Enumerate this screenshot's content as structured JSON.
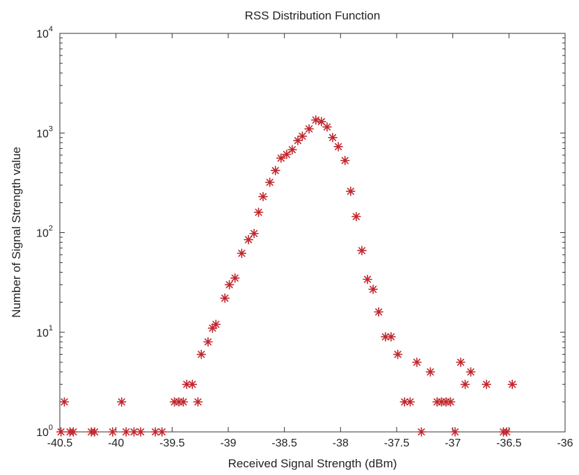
{
  "chart_data": {
    "type": "scatter",
    "title": "RSS Distribution Function",
    "xlabel": "Received Signal Strength (dBm)",
    "ylabel": "Number of Signal Strength value",
    "xlim": [
      -40.5,
      -36
    ],
    "ylim": [
      1,
      10000
    ],
    "yscale": "log",
    "grid": false,
    "marker": "asterisk",
    "marker_color": "#c0262c",
    "x_ticks": [
      {
        "value": -40.5,
        "label": "-40.5"
      },
      {
        "value": -40,
        "label": "-40"
      },
      {
        "value": -39.5,
        "label": "-39.5"
      },
      {
        "value": -39,
        "label": "-39"
      },
      {
        "value": -38.5,
        "label": "-38.5"
      },
      {
        "value": -38,
        "label": "-38"
      },
      {
        "value": -37.5,
        "label": "-37.5"
      },
      {
        "value": -37,
        "label": "-37"
      },
      {
        "value": -36.5,
        "label": "-36.5"
      },
      {
        "value": -36,
        "label": "-36"
      }
    ],
    "y_ticks": [
      {
        "value": 1,
        "base": "10",
        "exp": "0"
      },
      {
        "value": 10,
        "base": "10",
        "exp": "1"
      },
      {
        "value": 100,
        "base": "10",
        "exp": "2"
      },
      {
        "value": 1000,
        "base": "10",
        "exp": "3"
      },
      {
        "value": 10000,
        "base": "10",
        "exp": "4"
      }
    ],
    "points": [
      [
        -40.49,
        1
      ],
      [
        -40.46,
        2
      ],
      [
        -40.41,
        1
      ],
      [
        -40.38,
        1
      ],
      [
        -40.22,
        1
      ],
      [
        -40.19,
        1
      ],
      [
        -40.03,
        1
      ],
      [
        -39.95,
        2
      ],
      [
        -39.91,
        1
      ],
      [
        -39.84,
        1
      ],
      [
        -39.78,
        1
      ],
      [
        -39.65,
        1
      ],
      [
        -39.59,
        1
      ],
      [
        -39.48,
        2
      ],
      [
        -39.44,
        2
      ],
      [
        -39.4,
        2
      ],
      [
        -39.37,
        3
      ],
      [
        -39.32,
        3
      ],
      [
        -39.27,
        2
      ],
      [
        -39.24,
        6
      ],
      [
        -39.18,
        8
      ],
      [
        -39.14,
        11
      ],
      [
        -39.11,
        12
      ],
      [
        -39.03,
        22
      ],
      [
        -38.99,
        30
      ],
      [
        -38.94,
        35
      ],
      [
        -38.88,
        62
      ],
      [
        -38.82,
        85
      ],
      [
        -38.77,
        98
      ],
      [
        -38.73,
        160
      ],
      [
        -38.69,
        230
      ],
      [
        -38.63,
        320
      ],
      [
        -38.58,
        420
      ],
      [
        -38.53,
        560
      ],
      [
        -38.48,
        610
      ],
      [
        -38.43,
        680
      ],
      [
        -38.38,
        840
      ],
      [
        -38.34,
        930
      ],
      [
        -38.28,
        1100
      ],
      [
        -38.22,
        1350
      ],
      [
        -38.17,
        1300
      ],
      [
        -38.12,
        1150
      ],
      [
        -38.07,
        900
      ],
      [
        -38.02,
        730
      ],
      [
        -37.96,
        530
      ],
      [
        -37.91,
        260
      ],
      [
        -37.86,
        145
      ],
      [
        -37.81,
        66
      ],
      [
        -37.76,
        34
      ],
      [
        -37.71,
        27
      ],
      [
        -37.66,
        16
      ],
      [
        -37.6,
        9
      ],
      [
        -37.55,
        9
      ],
      [
        -37.49,
        6
      ],
      [
        -37.43,
        2
      ],
      [
        -37.38,
        2
      ],
      [
        -37.32,
        5
      ],
      [
        -37.28,
        1
      ],
      [
        -37.2,
        4
      ],
      [
        -37.14,
        2
      ],
      [
        -37.1,
        2
      ],
      [
        -37.06,
        2
      ],
      [
        -37.02,
        2
      ],
      [
        -36.98,
        1
      ],
      [
        -36.93,
        5
      ],
      [
        -36.89,
        3
      ],
      [
        -36.84,
        4
      ],
      [
        -36.7,
        3
      ],
      [
        -36.55,
        1
      ],
      [
        -36.52,
        1
      ],
      [
        -36.47,
        3
      ]
    ]
  }
}
